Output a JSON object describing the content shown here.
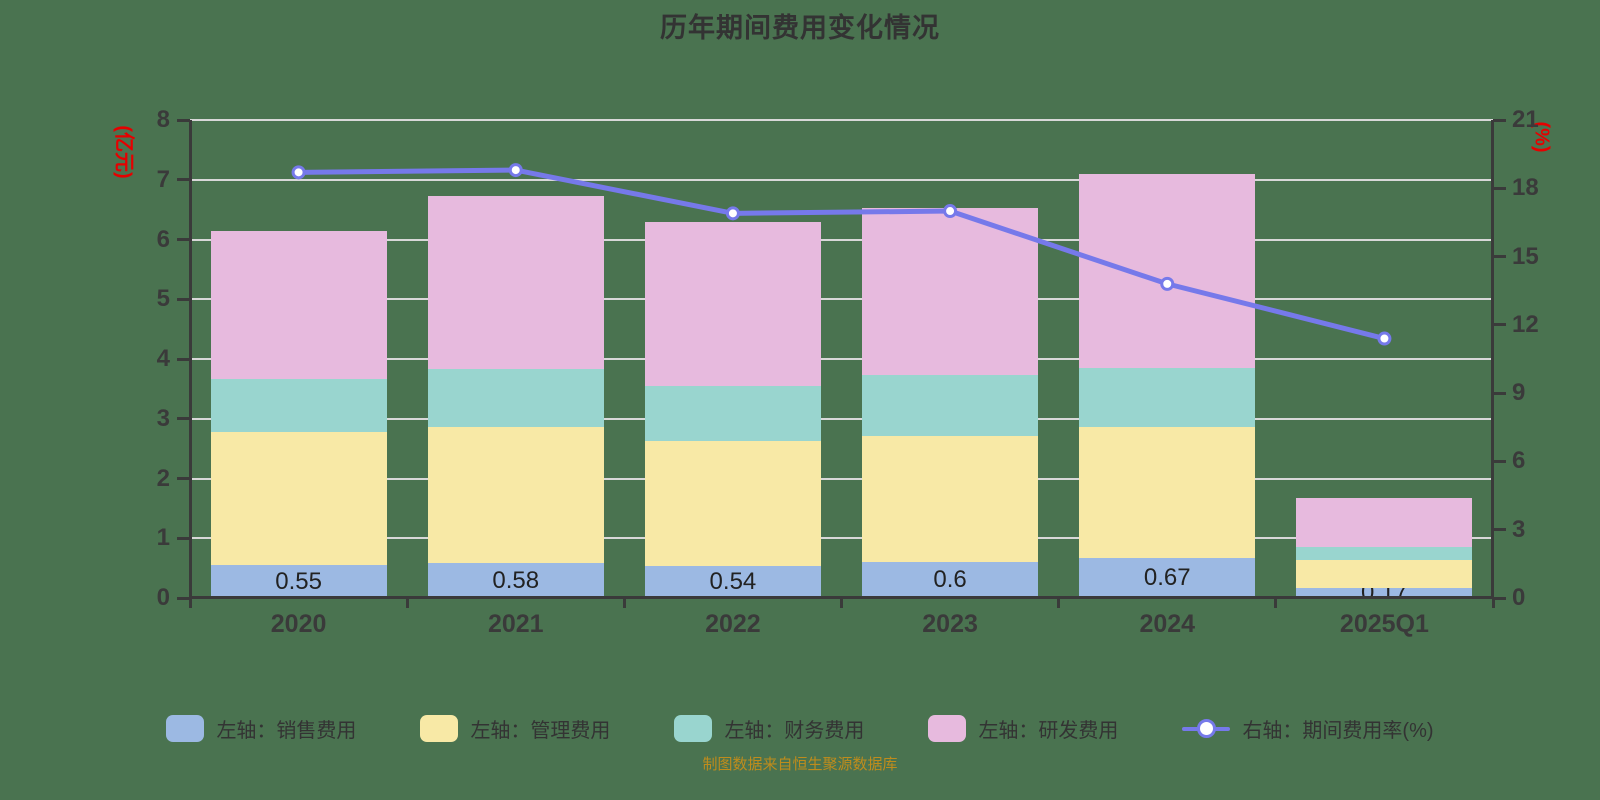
{
  "title": "历年期间费用变化情况",
  "source_note": "制图数据来自恒生聚源数据库",
  "colors": {
    "background": "#4a7350",
    "title_text": "#333333",
    "tick_text": "#3a3a3a",
    "axis_line": "#3a3a3a",
    "gridline": "#d8d8d8",
    "bar_label_text": "#222222",
    "footer_text": "#bf8c1c",
    "axis_name_text": "#e60000",
    "legend_text": "#333333"
  },
  "chart_data": {
    "type": "bar",
    "subtype": "stacked-bars-with-line-dual-axis",
    "categories": [
      "2020",
      "2021",
      "2022",
      "2023",
      "2024",
      "2025Q1"
    ],
    "bar_series": [
      {
        "name": "左轴：销售费用",
        "color": "#9cb9e3",
        "values": [
          0.55,
          0.58,
          0.54,
          0.6,
          0.67,
          0.17
        ],
        "labels": [
          "0.55",
          "0.58",
          "0.54",
          "0.6",
          "0.67",
          "0.17"
        ]
      },
      {
        "name": "左轴：管理费用",
        "color": "#f8e9a6",
        "values": [
          2.23,
          2.28,
          2.09,
          2.11,
          2.2,
          0.47
        ]
      },
      {
        "name": "左轴：财务费用",
        "color": "#99d5cf",
        "values": [
          0.89,
          0.97,
          0.92,
          1.02,
          0.98,
          0.22
        ]
      },
      {
        "name": "左轴：研发费用",
        "color": "#e7bade",
        "values": [
          2.47,
          2.9,
          2.75,
          2.8,
          3.25,
          0.81
        ]
      }
    ],
    "stack_totals": [
      6.14,
      6.73,
      6.3,
      6.53,
      7.1,
      1.67
    ],
    "line_series": {
      "name": "右轴：期间费用率(%)",
      "color": "#7679ea",
      "marker_fill": "#ffffff",
      "values": [
        18.7,
        18.8,
        16.9,
        17.0,
        13.8,
        11.4
      ]
    },
    "left_axis": {
      "name": "(亿元)",
      "min": 0,
      "max": 8,
      "step": 1
    },
    "right_axis": {
      "name": "(%)",
      "min": 0,
      "max": 21,
      "step": 3
    },
    "grid": true,
    "legend_position": "bottom"
  }
}
